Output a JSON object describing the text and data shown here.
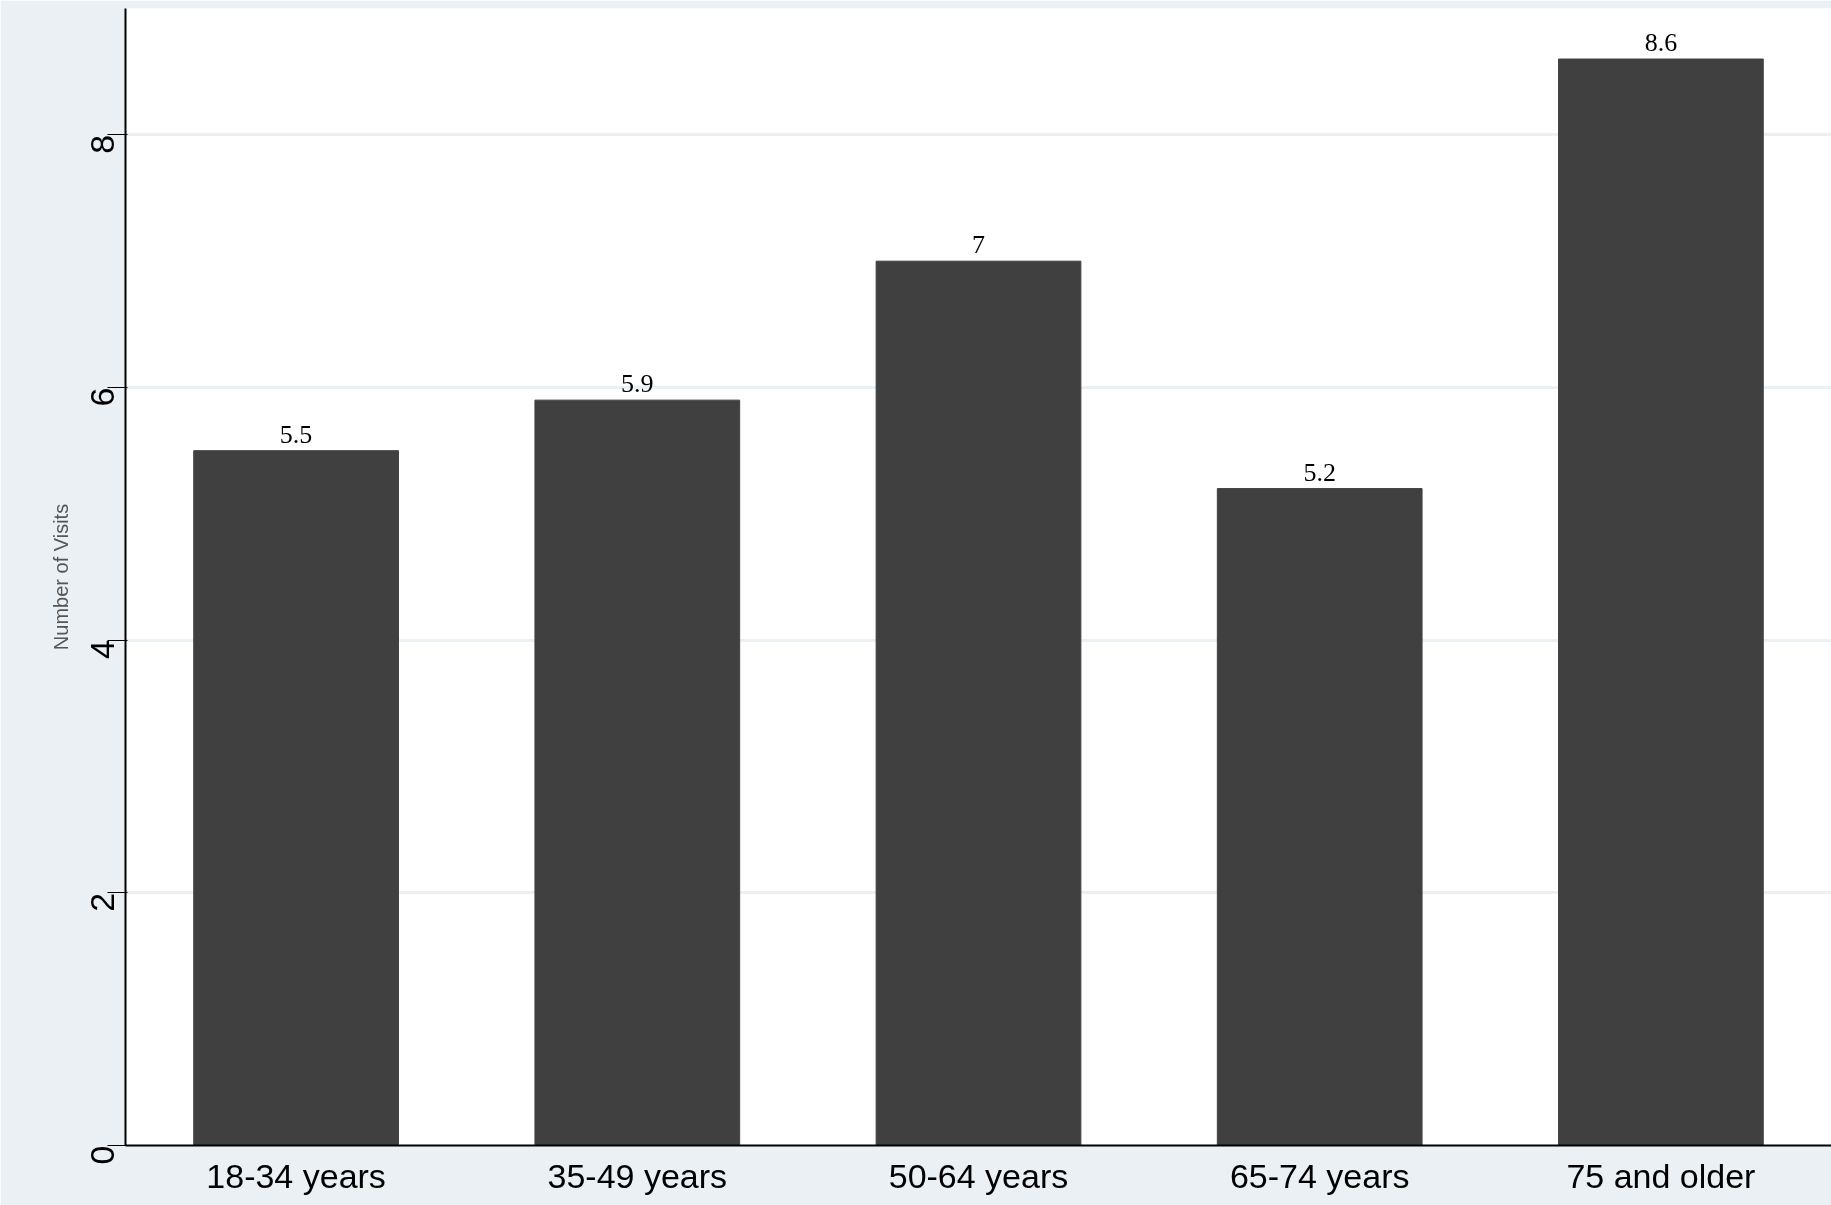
{
  "chart_data": {
    "type": "bar",
    "ylabel": "Number of Visits",
    "categories": [
      "18-34 years",
      "35-49 years",
      "50-64 years",
      "65-74 years",
      "75 and older"
    ],
    "values": [
      5.5,
      5.9,
      7,
      5.2,
      8.6
    ],
    "color": "#404040",
    "data_labels": true,
    "ylim": [
      0,
      9
    ],
    "yticks": [
      0,
      2,
      4,
      6,
      8
    ],
    "grid": "y"
  }
}
